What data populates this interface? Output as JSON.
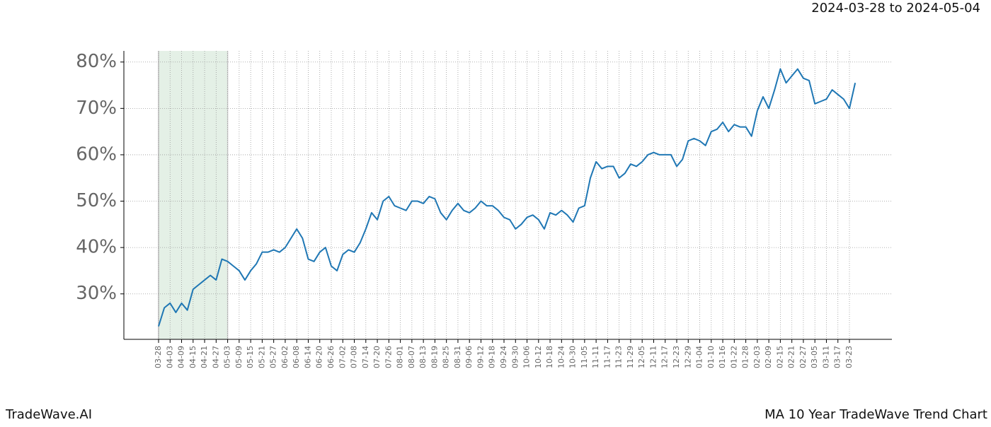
{
  "chart_data": {
    "type": "line",
    "subtitle": "2024-03-28 to 2024-05-04",
    "categories": [
      "03-28",
      null,
      "04-03",
      null,
      "04-09",
      null,
      "04-15",
      null,
      "04-21",
      null,
      "04-27",
      null,
      "05-03",
      null,
      "05-09",
      null,
      "05-15",
      null,
      "05-21",
      null,
      "05-27",
      null,
      "06-02",
      null,
      "06-08",
      null,
      "06-14",
      null,
      "06-20",
      null,
      "06-26",
      null,
      "07-02",
      null,
      "07-08",
      null,
      "07-14",
      null,
      "07-20",
      null,
      "07-26",
      null,
      "08-01",
      null,
      "08-07",
      null,
      "08-13",
      null,
      "08-19",
      null,
      "08-25",
      null,
      "08-31",
      null,
      "09-06",
      null,
      "09-12",
      null,
      "09-18",
      null,
      "09-24",
      null,
      "09-30",
      null,
      "10-06",
      null,
      "10-12",
      null,
      "10-18",
      null,
      "10-24",
      null,
      "10-30",
      null,
      "11-05",
      null,
      "11-11",
      null,
      "11-17",
      null,
      "11-23",
      null,
      "11-29",
      null,
      "12-05",
      null,
      "12-11",
      null,
      "12-17",
      null,
      "12-23",
      null,
      "12-29",
      null,
      "01-04",
      null,
      "01-10",
      null,
      "01-16",
      null,
      "01-22",
      null,
      "01-28",
      null,
      "02-03",
      null,
      "02-09",
      null,
      "02-15",
      null,
      "02-21",
      null,
      "02-27",
      null,
      "03-05",
      null,
      "03-11",
      null,
      "03-17",
      null,
      "03-23",
      null
    ],
    "values": [
      23,
      27,
      28,
      26,
      28,
      26.5,
      31,
      32,
      33,
      34,
      33,
      37.5,
      37,
      36,
      35,
      33,
      35,
      36.5,
      39,
      39,
      39.5,
      39,
      40,
      42,
      44,
      42,
      37.5,
      37,
      39,
      40,
      36,
      35,
      38.5,
      39.5,
      39,
      41,
      44,
      47.5,
      46,
      50,
      51,
      49,
      48.5,
      48,
      50,
      50,
      49.5,
      51,
      50.5,
      47.5,
      46,
      48,
      49.5,
      48,
      47.5,
      48.5,
      50,
      49,
      49,
      48,
      46.5,
      46,
      44,
      45,
      46.5,
      47,
      46,
      44,
      47.5,
      47,
      48,
      47,
      45.5,
      48.5,
      49,
      55,
      58.5,
      57,
      57.5,
      57.5,
      55,
      56,
      58,
      57.5,
      58.5,
      60,
      60.5,
      60,
      60,
      60,
      57.5,
      59,
      63,
      63.5,
      63,
      62,
      65,
      65.5,
      67,
      65,
      66.5,
      66,
      66,
      64,
      69.5,
      72.5,
      70,
      74,
      78.5,
      75.5,
      77,
      78.5,
      76.5,
      76,
      71,
      71.5,
      72,
      74,
      73,
      72,
      70,
      75.5
    ],
    "color": "#1f77b4",
    "shade": {
      "start": "03-28",
      "end": "05-03",
      "color": "#d8eadb"
    },
    "ylim": [
      20.2,
      82.4
    ],
    "yticks": [
      {
        "value": 30,
        "label": "30%"
      },
      {
        "value": 40,
        "label": "40%"
      },
      {
        "value": 50,
        "label": "50%"
      },
      {
        "value": 60,
        "label": "60%"
      },
      {
        "value": 70,
        "label": "70%"
      },
      {
        "value": 80,
        "label": "80%"
      }
    ],
    "grid": true
  },
  "footer": {
    "left": "TradeWave.AI",
    "right": "MA 10 Year TradeWave Trend Chart"
  }
}
